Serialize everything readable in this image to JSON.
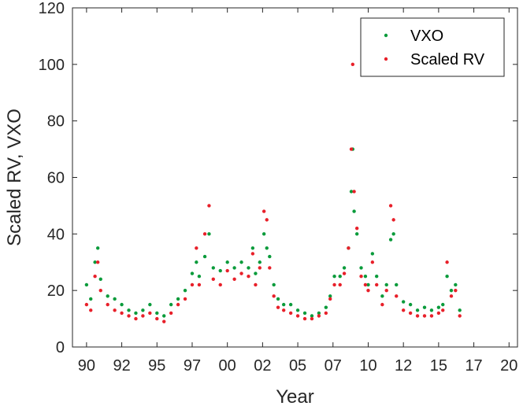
{
  "chart_data": {
    "type": "scatter",
    "title": "",
    "xlabel": "Year",
    "ylabel": "Scaled RV, VXO",
    "xlim": [
      1989,
      2020.6
    ],
    "ylim": [
      0,
      120
    ],
    "x_ticks": [
      1990,
      1992.5,
      1995,
      1997.5,
      2000,
      2002.5,
      2005,
      2007.5,
      2010,
      2012.5,
      2015,
      2017.5,
      2020
    ],
    "x_tick_labels": [
      "90",
      "92",
      "95",
      "97",
      "00",
      "02",
      "05",
      "07",
      "10",
      "12",
      "15",
      "17",
      "20"
    ],
    "y_ticks": [
      0,
      20,
      40,
      60,
      80,
      100,
      120
    ],
    "y_tick_labels": [
      "0",
      "20",
      "40",
      "60",
      "80",
      "100",
      "120"
    ],
    "grid": false,
    "legend_placement": "top-right",
    "colors": {
      "VXO": "#0a9b3b",
      "Scaled RV": "#e8202a"
    },
    "series": [
      {
        "name": "VXO",
        "x": [
          1990.0,
          1990.3,
          1990.6,
          1990.8,
          1991.0,
          1991.5,
          1992.0,
          1992.5,
          1993.0,
          1993.5,
          1994.0,
          1994.5,
          1995.0,
          1995.5,
          1996.0,
          1996.5,
          1997.0,
          1997.5,
          1997.8,
          1998.0,
          1998.4,
          1998.7,
          1999.0,
          1999.5,
          2000.0,
          2000.5,
          2001.0,
          2001.5,
          2001.8,
          2002.0,
          2002.3,
          2002.6,
          2002.8,
          2003.0,
          2003.3,
          2003.6,
          2004.0,
          2004.5,
          2005.0,
          2005.5,
          2006.0,
          2006.5,
          2007.0,
          2007.3,
          2007.6,
          2008.0,
          2008.3,
          2008.6,
          2008.8,
          2008.9,
          2009.0,
          2009.2,
          2009.5,
          2009.8,
          2010.0,
          2010.3,
          2010.6,
          2011.0,
          2011.3,
          2011.6,
          2011.8,
          2012.0,
          2012.5,
          2013.0,
          2013.5,
          2014.0,
          2014.5,
          2015.0,
          2015.3,
          2015.6,
          2015.9,
          2016.2,
          2016.5
        ],
        "y": [
          22,
          17,
          30,
          35,
          24,
          18,
          17,
          15,
          13,
          12,
          13,
          15,
          12,
          11,
          15,
          17,
          20,
          26,
          30,
          25,
          32,
          40,
          28,
          27,
          30,
          28,
          30,
          28,
          35,
          26,
          30,
          40,
          35,
          32,
          22,
          17,
          15,
          15,
          13,
          12,
          11,
          12,
          14,
          18,
          25,
          25,
          28,
          35,
          55,
          70,
          48,
          40,
          28,
          25,
          22,
          33,
          25,
          18,
          22,
          38,
          40,
          22,
          16,
          15,
          13,
          14,
          13,
          14,
          15,
          25,
          20,
          22,
          13
        ]
      },
      {
        "name": "Scaled RV",
        "x": [
          1990.0,
          1990.3,
          1990.6,
          1990.8,
          1991.0,
          1991.5,
          1992.0,
          1992.5,
          1993.0,
          1993.5,
          1994.0,
          1994.5,
          1995.0,
          1995.5,
          1996.0,
          1996.5,
          1997.0,
          1997.5,
          1997.8,
          1998.0,
          1998.4,
          1998.7,
          1999.0,
          1999.5,
          2000.0,
          2000.5,
          2001.0,
          2001.5,
          2001.8,
          2002.0,
          2002.3,
          2002.6,
          2002.8,
          2003.0,
          2003.3,
          2003.6,
          2004.0,
          2004.5,
          2005.0,
          2005.5,
          2006.0,
          2006.5,
          2007.0,
          2007.3,
          2007.6,
          2008.0,
          2008.3,
          2008.6,
          2008.8,
          2008.9,
          2009.0,
          2009.2,
          2009.5,
          2009.8,
          2010.0,
          2010.3,
          2010.6,
          2011.0,
          2011.3,
          2011.6,
          2011.8,
          2012.0,
          2012.5,
          2013.0,
          2013.5,
          2014.0,
          2014.5,
          2015.0,
          2015.3,
          2015.6,
          2015.9,
          2016.2,
          2016.5
        ],
        "y": [
          15,
          13,
          25,
          30,
          20,
          15,
          13,
          12,
          11,
          10,
          11,
          12,
          10,
          9,
          12,
          15,
          17,
          22,
          35,
          22,
          40,
          50,
          24,
          22,
          27,
          24,
          26,
          25,
          33,
          22,
          28,
          48,
          45,
          28,
          18,
          14,
          13,
          12,
          11,
          10,
          10,
          11,
          12,
          17,
          22,
          22,
          26,
          35,
          70,
          100,
          55,
          42,
          25,
          22,
          20,
          30,
          22,
          15,
          20,
          50,
          45,
          18,
          13,
          12,
          11,
          11,
          11,
          12,
          13,
          30,
          18,
          20,
          11
        ]
      }
    ]
  }
}
